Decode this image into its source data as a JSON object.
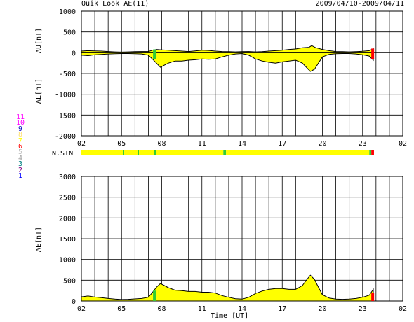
{
  "header": {
    "title": "Quik Look AE(11)",
    "date_range": "2009/04/10-2009/04/11"
  },
  "legend": {
    "items": [
      {
        "label": "11",
        "color": "#ff00ff"
      },
      {
        "label": "10",
        "color": "#ff00ff"
      },
      {
        "label": "9",
        "color": "#0000c0"
      },
      {
        "label": "8",
        "color": "#ffe070"
      },
      {
        "label": "7",
        "color": "#ffff00"
      },
      {
        "label": "6",
        "color": "#ff0000"
      },
      {
        "label": "5",
        "color": "#c0c0c0"
      },
      {
        "label": "4",
        "color": "#a0a0a0"
      },
      {
        "label": "3",
        "color": "#008080"
      },
      {
        "label": "2",
        "color": "#800080"
      },
      {
        "label": "1",
        "color": "#0000ff"
      }
    ]
  },
  "colors": {
    "fill": "#ffff00",
    "green": "#33cc33",
    "red": "#ff0000",
    "grid": "#000000"
  },
  "chart_data": [
    {
      "type": "area",
      "panel": "AU/AL",
      "ylabel_top": "AU[nT]",
      "ylabel_bottom": "AL[nT]",
      "ylim": [
        -2000,
        1000
      ],
      "yticks": [
        1000,
        500,
        0,
        -500,
        -1000,
        -1500,
        -2000
      ],
      "xticks": [
        "02",
        "05",
        "08",
        "11",
        "14",
        "17",
        "20",
        "23",
        "02"
      ],
      "xlim_hours": [
        2,
        26
      ],
      "grid": true,
      "au": {
        "x": [
          2.0,
          2.5,
          3.0,
          3.5,
          4.0,
          4.5,
          5.0,
          5.5,
          6.0,
          6.5,
          7.0,
          7.3,
          7.6,
          8.0,
          8.5,
          9.0,
          9.5,
          10.0,
          10.5,
          11.0,
          11.5,
          12.0,
          12.5,
          13.0,
          13.5,
          14.0,
          14.5,
          15.0,
          15.5,
          16.0,
          16.5,
          17.0,
          17.5,
          18.0,
          18.5,
          19.0,
          19.2,
          19.5,
          20.0,
          20.5,
          21.0,
          21.5,
          22.0,
          22.5,
          23.0,
          23.5,
          23.8
        ],
        "y": [
          40,
          50,
          45,
          40,
          30,
          20,
          15,
          20,
          25,
          30,
          30,
          60,
          80,
          70,
          60,
          50,
          40,
          30,
          45,
          60,
          55,
          40,
          30,
          25,
          20,
          25,
          30,
          20,
          25,
          40,
          50,
          60,
          80,
          90,
          120,
          130,
          170,
          120,
          80,
          50,
          30,
          25,
          20,
          25,
          35,
          50,
          100
        ]
      },
      "al": {
        "x": [
          2.0,
          2.5,
          3.0,
          3.5,
          4.0,
          4.5,
          5.0,
          5.5,
          6.0,
          6.5,
          7.0,
          7.3,
          7.6,
          7.9,
          8.2,
          8.5,
          9.0,
          9.5,
          10.0,
          10.5,
          11.0,
          11.5,
          12.0,
          12.5,
          13.0,
          13.5,
          14.0,
          14.5,
          15.0,
          15.5,
          16.0,
          16.5,
          17.0,
          17.5,
          18.0,
          18.5,
          18.8,
          19.1,
          19.4,
          19.7,
          20.0,
          20.5,
          21.0,
          21.5,
          22.0,
          22.5,
          23.0,
          23.5,
          23.8
        ],
        "y": [
          -60,
          -70,
          -50,
          -40,
          -30,
          -25,
          -20,
          -20,
          -25,
          -30,
          -60,
          -150,
          -250,
          -350,
          -300,
          -250,
          -200,
          -200,
          -180,
          -170,
          -150,
          -160,
          -150,
          -100,
          -60,
          -30,
          -20,
          -60,
          -150,
          -200,
          -230,
          -250,
          -220,
          -200,
          -180,
          -250,
          -350,
          -450,
          -400,
          -250,
          -100,
          -40,
          -25,
          -20,
          -20,
          -30,
          -50,
          -80,
          -180
        ]
      }
    },
    {
      "type": "bar",
      "panel": "N.STN",
      "label": "N.STN",
      "segments": [
        {
          "start": 2.0,
          "end": 5.1,
          "level": "yellow"
        },
        {
          "start": 5.1,
          "end": 5.2,
          "level": "green"
        },
        {
          "start": 5.2,
          "end": 6.2,
          "level": "yellow"
        },
        {
          "start": 6.2,
          "end": 6.3,
          "level": "green"
        },
        {
          "start": 6.3,
          "end": 7.4,
          "level": "yellow"
        },
        {
          "start": 7.4,
          "end": 7.6,
          "level": "green"
        },
        {
          "start": 7.6,
          "end": 12.6,
          "level": "yellow"
        },
        {
          "start": 12.6,
          "end": 12.8,
          "level": "green"
        },
        {
          "start": 12.8,
          "end": 23.5,
          "level": "yellow"
        },
        {
          "start": 23.5,
          "end": 23.65,
          "level": "green"
        },
        {
          "start": 23.65,
          "end": 23.85,
          "level": "red"
        }
      ]
    },
    {
      "type": "area",
      "panel": "AE",
      "ylabel": "AE[nT]",
      "ylim": [
        0,
        3000
      ],
      "yticks": [
        3000,
        2500,
        2000,
        1500,
        1000,
        500,
        0
      ],
      "xticks": [
        "02",
        "05",
        "08",
        "11",
        "14",
        "17",
        "20",
        "23",
        "02"
      ],
      "xlim_hours": [
        2,
        26
      ],
      "xlabel": "Time [UT]",
      "grid": true,
      "ae": {
        "x": [
          2.0,
          2.5,
          3.0,
          3.5,
          4.0,
          4.5,
          5.0,
          5.5,
          6.0,
          6.5,
          7.0,
          7.3,
          7.6,
          7.9,
          8.2,
          8.5,
          9.0,
          9.5,
          10.0,
          10.5,
          11.0,
          11.5,
          12.0,
          12.5,
          13.0,
          13.5,
          14.0,
          14.5,
          15.0,
          15.5,
          16.0,
          16.5,
          17.0,
          17.5,
          18.0,
          18.5,
          18.8,
          19.1,
          19.4,
          19.7,
          20.0,
          20.5,
          21.0,
          21.5,
          22.0,
          22.5,
          23.0,
          23.5,
          23.8
        ],
        "y": [
          100,
          120,
          95,
          80,
          60,
          45,
          35,
          40,
          50,
          60,
          90,
          200,
          330,
          420,
          370,
          320,
          260,
          250,
          230,
          230,
          210,
          210,
          190,
          130,
          90,
          55,
          45,
          90,
          180,
          240,
          280,
          300,
          300,
          280,
          280,
          370,
          500,
          620,
          520,
          330,
          150,
          70,
          45,
          40,
          45,
          60,
          90,
          140,
          280
        ]
      }
    }
  ]
}
